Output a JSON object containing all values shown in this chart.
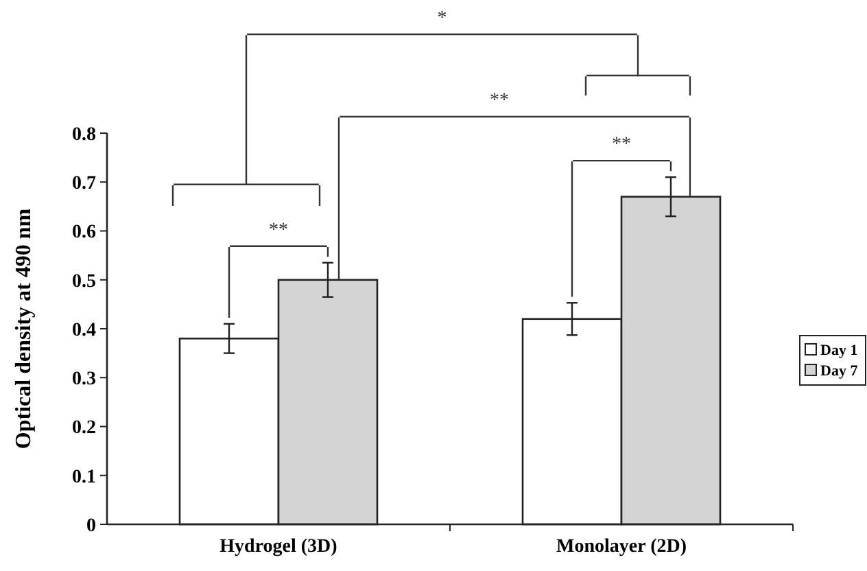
{
  "chart_data": {
    "type": "bar",
    "ylabel": "Optical density at 490 nm",
    "categories": [
      "Hydrogel (3D)",
      "Monolayer (2D)"
    ],
    "series": [
      {
        "name": "Day 1",
        "color": "#ffffff",
        "values": [
          0.38,
          0.42
        ],
        "errors": [
          0.03,
          0.033
        ]
      },
      {
        "name": "Day 7",
        "color": "#d4d4d4",
        "values": [
          0.5,
          0.67
        ],
        "errors": [
          0.035,
          0.04
        ]
      }
    ],
    "ylim": [
      0,
      0.8
    ],
    "yticks": [
      0,
      0.1,
      0.2,
      0.3,
      0.4,
      0.5,
      0.6,
      0.7,
      0.8
    ],
    "grid": false,
    "legend": "right",
    "annotations": [
      "**",
      "**",
      "**",
      "*"
    ]
  }
}
